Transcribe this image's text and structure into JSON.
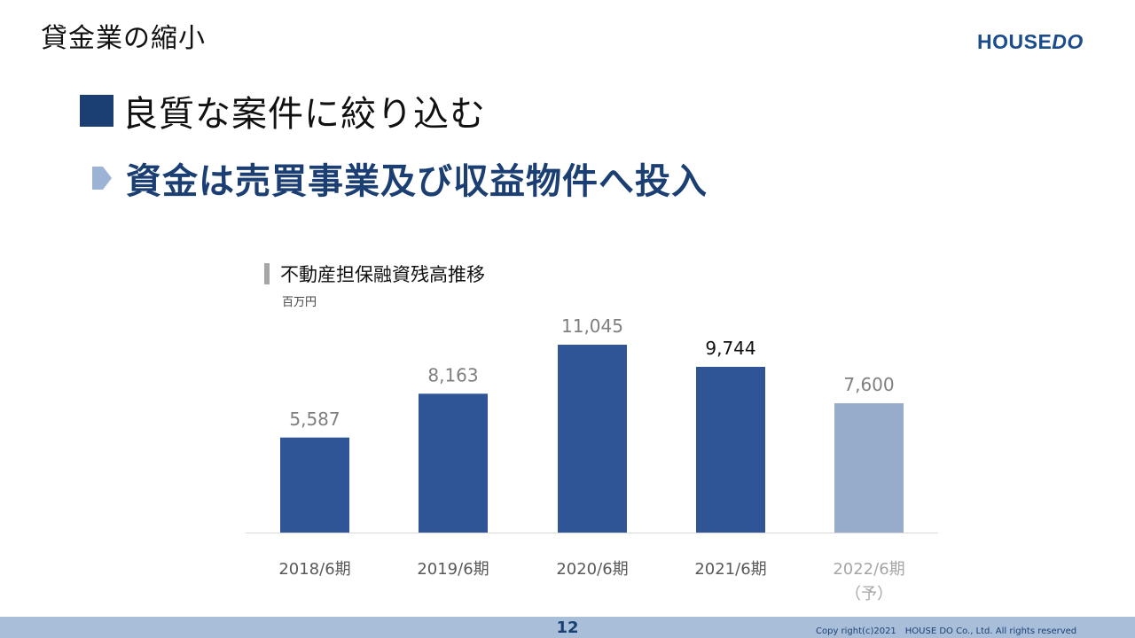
{
  "header": {
    "title": "貸金業の縮小",
    "logo_house": "HOUSE",
    "logo_do": "DO"
  },
  "headline": {
    "text": "良質な案件に絞り込む"
  },
  "subhead": {
    "text": "資金は売買事業及び収益物件へ投入"
  },
  "chart_data": {
    "type": "bar",
    "title": "不動産担保融資残高推移",
    "unit": "百万円",
    "categories": [
      "2018/6期",
      "2019/6期",
      "2020/6期",
      "2021/6期",
      "2022/6期（予）"
    ],
    "values": [
      5587,
      8163,
      11045,
      9744,
      7600
    ],
    "value_labels": [
      "5,587",
      "8,163",
      "11,045",
      "9,744",
      "7,600"
    ],
    "bar_colors": [
      "#2f5597",
      "#2f5597",
      "#2f5597",
      "#2f5597",
      "#97abcb"
    ],
    "forecast_index": 4,
    "ylim": [
      0,
      12000
    ],
    "grid": false
  },
  "footer": {
    "page_number": "12",
    "copyright": "Copy right(c)2021　HOUSE DO Co., Ltd. All rights reserved"
  },
  "colors": {
    "brand": "#1b3f73",
    "bar": "#2f5597",
    "bar_forecast": "#97abcb",
    "footer_bar": "#a9bfd9"
  }
}
